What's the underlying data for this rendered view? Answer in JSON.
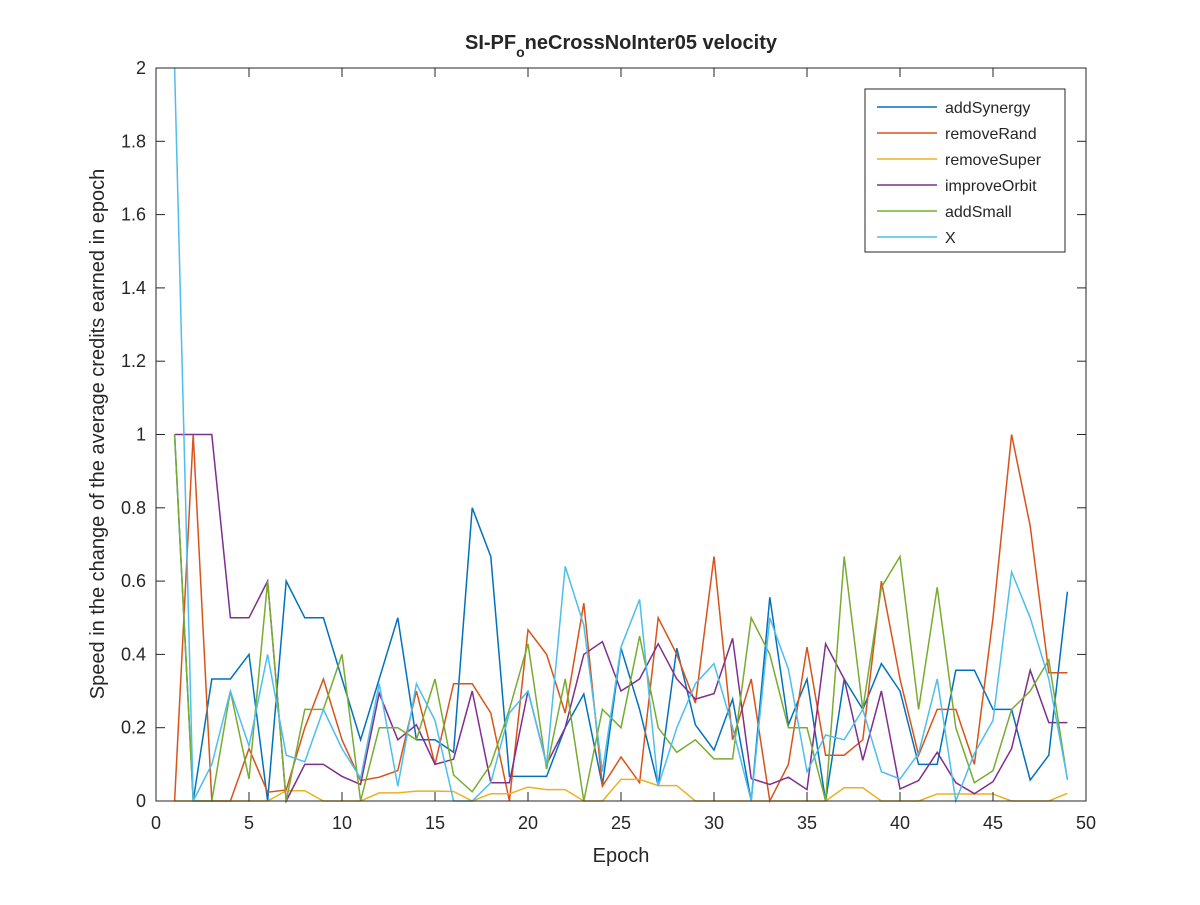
{
  "chart_data": {
    "type": "line",
    "title": "SI-PF",
    "title_subscript": "o",
    "title_rest": "neCrossNoInter05 velocity",
    "xlabel": "Epoch",
    "ylabel": "Speed in the change of the average credits earned in epoch",
    "xlim": [
      0,
      50
    ],
    "ylim": [
      0,
      2
    ],
    "xticks": [
      0,
      5,
      10,
      15,
      20,
      25,
      30,
      35,
      40,
      45,
      50
    ],
    "yticks": [
      0,
      0.2,
      0.4,
      0.6,
      0.8,
      1,
      1.2,
      1.4,
      1.6,
      1.8,
      2
    ],
    "grid": false,
    "legend_position": "top-right",
    "x": [
      1,
      2,
      3,
      4,
      5,
      6,
      7,
      8,
      9,
      10,
      11,
      12,
      13,
      14,
      15,
      16,
      17,
      18,
      19,
      20,
      21,
      22,
      23,
      24,
      25,
      26,
      27,
      28,
      29,
      30,
      31,
      32,
      33,
      34,
      35,
      36,
      37,
      38,
      39,
      40,
      41,
      42,
      43,
      44,
      45,
      46,
      47,
      48,
      49
    ],
    "series": [
      {
        "name": "addSynergy",
        "color": "#0072BD",
        "values": [
          1,
          0,
          0.333,
          0.333,
          0.4,
          0,
          0.6,
          0.5,
          0.5,
          0.333,
          0.167,
          0.333,
          0.5,
          0.167,
          0.167,
          0.133,
          0.8,
          0.667,
          0.067,
          0.067,
          0.067,
          0.2,
          0.292,
          0.042,
          0.417,
          0.25,
          0.042,
          0.417,
          0.208,
          0.139,
          0.278,
          0,
          0.556,
          0.208,
          0.333,
          0,
          0.333,
          0.25,
          0.375,
          0.3,
          0.1,
          0.1,
          0.357,
          0.357,
          0.25,
          0.25,
          0.057,
          0.125,
          0.571
        ]
      },
      {
        "name": "removeRand",
        "color": "#D95319",
        "values": [
          0,
          1,
          0,
          0,
          0.143,
          0.024,
          0.03,
          0.2,
          0.333,
          0.167,
          0.056,
          0.065,
          0.083,
          0.3,
          0.1,
          0.32,
          0.32,
          0.24,
          0.0,
          0.467,
          0.4,
          0.24,
          0.54,
          0.04,
          0.12,
          0.05,
          0.5,
          0.4,
          0.267,
          0.667,
          0.167,
          0.333,
          0,
          0.1,
          0.42,
          0.125,
          0.125,
          0.167,
          0.6,
          0.333,
          0.125,
          0.25,
          0.25,
          0.1,
          0.5,
          1,
          0.75,
          0.35,
          0.35
        ]
      },
      {
        "name": "removeSuper",
        "color": "#EDB120",
        "values": [
          0,
          0,
          0,
          0,
          0,
          0,
          0.028,
          0.028,
          0,
          0,
          0,
          0.022,
          0.022,
          0.027,
          0.027,
          0.026,
          0,
          0.02,
          0.02,
          0.038,
          0.031,
          0.031,
          0,
          0,
          0.059,
          0.059,
          0.042,
          0.042,
          0,
          0,
          0,
          0,
          0,
          0,
          0,
          0,
          0.036,
          0.036,
          0,
          0,
          0,
          0.019,
          0.019,
          0.019,
          0.019,
          0,
          0,
          0,
          0.021
        ]
      },
      {
        "name": "improveOrbit",
        "color": "#7E2F8E",
        "values": [
          1,
          1,
          1,
          0.5,
          0.5,
          0.6,
          0,
          0.1,
          0.1,
          0.067,
          0.045,
          0.294,
          0.167,
          0.208,
          0.1,
          0.114,
          0.3,
          0.05,
          0.05,
          0.3,
          0.1,
          0.2,
          0.4,
          0.435,
          0.3,
          0.333,
          0.429,
          0.333,
          0.278,
          0.293,
          0.444,
          0.061,
          0.045,
          0.065,
          0.031,
          0.429,
          0.333,
          0.111,
          0.3,
          0.033,
          0.056,
          0.133,
          0.05,
          0.02,
          0.053,
          0.143,
          0.357,
          0.214,
          0.214
        ]
      },
      {
        "name": "addSmall",
        "color": "#77AC30",
        "values": [
          1,
          0,
          0,
          0.3,
          0.06,
          0.6,
          0,
          0.25,
          0.25,
          0.4,
          0,
          0.2,
          0.2,
          0.167,
          0.333,
          0.071,
          0.025,
          0.1,
          0.25,
          0.429,
          0.087,
          0.333,
          0,
          0.25,
          0.2,
          0.45,
          0.2,
          0.133,
          0.167,
          0.115,
          0.115,
          0.5,
          0.4,
          0.2,
          0.2,
          0,
          0.667,
          0.25,
          0.583,
          0.667,
          0.25,
          0.583,
          0.2,
          0.05,
          0.083,
          0.25,
          0.3,
          0.385,
          0.058
        ]
      },
      {
        "name": "X",
        "color": "#4DBEEE",
        "values": [
          2,
          0,
          0.1,
          0.3,
          0.15,
          0.4,
          0.125,
          0.107,
          0.25,
          0.143,
          0.062,
          0.32,
          0.04,
          0.32,
          0.22,
          0,
          0,
          0.05,
          0.24,
          0.3,
          0.1,
          0.64,
          0.48,
          0.08,
          0.42,
          0.55,
          0.04,
          0.2,
          0.32,
          0.375,
          0.2,
          0,
          0.5,
          0.36,
          0.08,
          0.18,
          0.167,
          0.25,
          0.08,
          0.06,
          0.13,
          0.333,
          0,
          0.13,
          0.22,
          0.625,
          0.5,
          0.333,
          0.06
        ]
      }
    ]
  }
}
